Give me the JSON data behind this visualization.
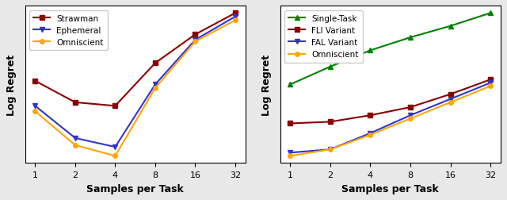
{
  "x_ticks": [
    1,
    2,
    4,
    8,
    16,
    32
  ],
  "left_plot": {
    "xlabel": "Samples per Task",
    "ylabel": "Log Regret",
    "series": [
      {
        "label": "Strawman",
        "color": "#8B0000",
        "marker": "s",
        "markersize": 4,
        "y": [
          0.62,
          0.5,
          0.48,
          0.72,
          0.88,
          1.0
        ]
      },
      {
        "label": "Ephemeral",
        "color": "#3333CC",
        "marker": "v",
        "markersize": 4,
        "y": [
          0.48,
          0.3,
          0.25,
          0.6,
          0.85,
          0.98
        ]
      },
      {
        "label": "Omniscient",
        "color": "#FFA500",
        "marker": "o",
        "markersize": 4,
        "y": [
          0.45,
          0.26,
          0.2,
          0.58,
          0.84,
          0.96
        ]
      }
    ]
  },
  "right_plot": {
    "xlabel": "Samples per Task",
    "ylabel": "Log Regret",
    "series": [
      {
        "label": "Single-Task",
        "color": "#008000",
        "marker": "^",
        "markersize": 4,
        "y": [
          0.52,
          0.63,
          0.73,
          0.81,
          0.88,
          0.96
        ]
      },
      {
        "label": "FLI Variant",
        "color": "#8B0000",
        "marker": "s",
        "markersize": 4,
        "y": [
          0.28,
          0.29,
          0.33,
          0.38,
          0.46,
          0.55
        ]
      },
      {
        "label": "FAL Variant",
        "color": "#3333CC",
        "marker": "v",
        "markersize": 4,
        "y": [
          0.1,
          0.12,
          0.22,
          0.33,
          0.43,
          0.53
        ]
      },
      {
        "label": "Omniscient",
        "color": "#FFA500",
        "marker": "o",
        "markersize": 4,
        "y": [
          0.08,
          0.12,
          0.21,
          0.31,
          0.41,
          0.51
        ]
      }
    ]
  },
  "figure_bg": "#e8e8e8",
  "axes_bg": "#ffffff",
  "legend_fontsize": 7.5,
  "axis_label_fontsize": 9,
  "tick_fontsize": 8
}
